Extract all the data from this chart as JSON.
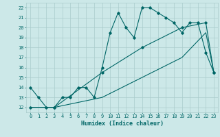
{
  "title": "",
  "xlabel": "Humidex (Indice chaleur)",
  "ylabel": "",
  "background_color": "#cce8e8",
  "grid_color": "#aacccc",
  "line_color": "#006666",
  "xlim": [
    -0.5,
    23.5
  ],
  "ylim": [
    11.5,
    22.5
  ],
  "xticks": [
    0,
    1,
    2,
    3,
    4,
    5,
    6,
    7,
    8,
    9,
    10,
    11,
    12,
    13,
    14,
    15,
    16,
    17,
    18,
    19,
    20,
    21,
    22,
    23
  ],
  "yticks": [
    12,
    13,
    14,
    15,
    16,
    17,
    18,
    19,
    20,
    21,
    22
  ],
  "line1_x": [
    0,
    1,
    2,
    3,
    4,
    5,
    6,
    7,
    8,
    9,
    10,
    11,
    12,
    13,
    14,
    15,
    16,
    17,
    18,
    19,
    20,
    21,
    22,
    23
  ],
  "line1_y": [
    14,
    13,
    12,
    12,
    13,
    13,
    14,
    14,
    13,
    16,
    19.5,
    21.5,
    20,
    19,
    22,
    22,
    21.5,
    21,
    20.5,
    19.5,
    20.5,
    20.5,
    17.5,
    15.5
  ],
  "line2_x": [
    0,
    3,
    9,
    14,
    19,
    22,
    23
  ],
  "line2_y": [
    12,
    12,
    15.5,
    18,
    20,
    20.5,
    15.5
  ],
  "line3_x": [
    0,
    3,
    9,
    14,
    19,
    22,
    23
  ],
  "line3_y": [
    12,
    12,
    13,
    15,
    17,
    19.5,
    15.5
  ]
}
